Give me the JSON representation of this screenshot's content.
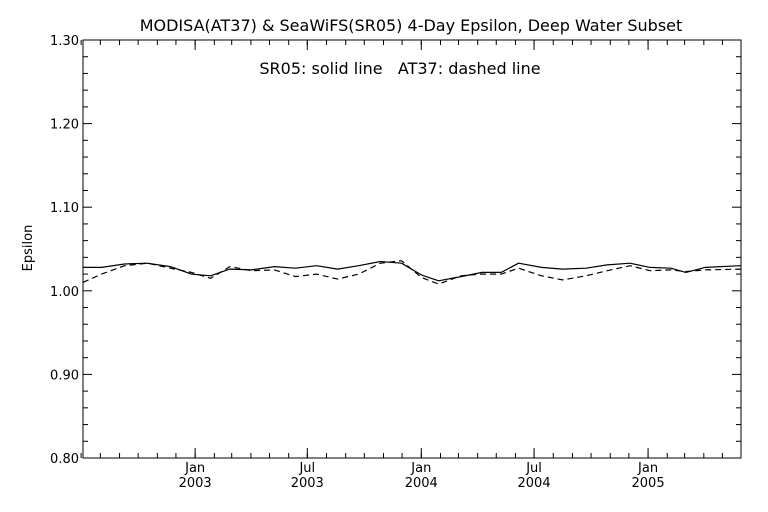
{
  "chart_data": {
    "type": "line",
    "title": "MODISA(AT37) & SeaWiFS(SR05) 4-Day Epsilon, Deep Water Subset",
    "annotation": "SR05: solid line   AT37: dashed line",
    "ylabel": "Epsilon",
    "xlabel": "",
    "ylim": [
      0.8,
      1.3
    ],
    "yticks": [
      "0.80",
      "0.90",
      "1.00",
      "1.10",
      "1.20",
      "1.30"
    ],
    "xlim": [
      "2002-07-04",
      "2005-05-31"
    ],
    "xticks": [
      {
        "date": "2003-01-01",
        "month": "Jan",
        "year": "2003"
      },
      {
        "date": "2003-07-01",
        "month": "Jul",
        "year": "2003"
      },
      {
        "date": "2004-01-01",
        "month": "Jan",
        "year": "2004"
      },
      {
        "date": "2004-07-01",
        "month": "Jul",
        "year": "2004"
      },
      {
        "date": "2005-01-01",
        "month": "Jan",
        "year": "2005"
      }
    ],
    "grid": false,
    "series": [
      {
        "name": "SR05",
        "style": "solid",
        "color": "#000000",
        "points": [
          [
            "2002-07-04",
            1.028
          ],
          [
            "2002-08-03",
            1.028
          ],
          [
            "2002-09-09",
            1.032
          ],
          [
            "2002-10-16",
            1.033
          ],
          [
            "2002-11-22",
            1.029
          ],
          [
            "2002-12-26",
            1.02
          ],
          [
            "2003-01-26",
            1.018
          ],
          [
            "2003-02-26",
            1.026
          ],
          [
            "2003-04-02",
            1.025
          ],
          [
            "2003-05-09",
            1.029
          ],
          [
            "2003-06-12",
            1.027
          ],
          [
            "2003-07-16",
            1.03
          ],
          [
            "2003-08-19",
            1.026
          ],
          [
            "2003-09-22",
            1.03
          ],
          [
            "2003-10-27",
            1.035
          ],
          [
            "2003-11-30",
            1.033
          ],
          [
            "2004-01-01",
            1.019
          ],
          [
            "2004-01-29",
            1.012
          ],
          [
            "2004-03-05",
            1.017
          ],
          [
            "2004-04-08",
            1.022
          ],
          [
            "2004-05-09",
            1.022
          ],
          [
            "2004-06-06",
            1.033
          ],
          [
            "2004-07-13",
            1.028
          ],
          [
            "2004-08-16",
            1.026
          ],
          [
            "2004-09-23",
            1.027
          ],
          [
            "2004-10-27",
            1.031
          ],
          [
            "2004-12-03",
            1.033
          ],
          [
            "2005-01-04",
            1.028
          ],
          [
            "2005-02-07",
            1.027
          ],
          [
            "2005-03-03",
            1.022
          ],
          [
            "2005-04-03",
            1.028
          ],
          [
            "2005-05-31",
            1.03
          ]
        ]
      },
      {
        "name": "AT37",
        "style": "dashed",
        "color": "#000000",
        "points": [
          [
            "2002-07-04",
            1.01
          ],
          [
            "2002-08-03",
            1.02
          ],
          [
            "2002-09-09",
            1.03
          ],
          [
            "2002-10-16",
            1.033
          ],
          [
            "2002-11-22",
            1.027
          ],
          [
            "2002-12-26",
            1.022
          ],
          [
            "2003-01-26",
            1.015
          ],
          [
            "2003-02-26",
            1.029
          ],
          [
            "2003-04-02",
            1.024
          ],
          [
            "2003-05-09",
            1.025
          ],
          [
            "2003-06-12",
            1.017
          ],
          [
            "2003-07-16",
            1.02
          ],
          [
            "2003-08-19",
            1.014
          ],
          [
            "2003-09-22",
            1.02
          ],
          [
            "2003-10-27",
            1.033
          ],
          [
            "2003-11-30",
            1.036
          ],
          [
            "2004-01-01",
            1.016
          ],
          [
            "2004-01-29",
            1.008
          ],
          [
            "2004-03-05",
            1.018
          ],
          [
            "2004-04-08",
            1.02
          ],
          [
            "2004-05-09",
            1.02
          ],
          [
            "2004-06-06",
            1.027
          ],
          [
            "2004-07-13",
            1.018
          ],
          [
            "2004-08-16",
            1.013
          ],
          [
            "2004-09-23",
            1.018
          ],
          [
            "2004-10-27",
            1.024
          ],
          [
            "2004-12-03",
            1.03
          ],
          [
            "2005-01-04",
            1.024
          ],
          [
            "2005-02-07",
            1.025
          ],
          [
            "2005-03-03",
            1.023
          ],
          [
            "2005-04-03",
            1.025
          ],
          [
            "2005-05-31",
            1.026
          ]
        ]
      }
    ]
  }
}
